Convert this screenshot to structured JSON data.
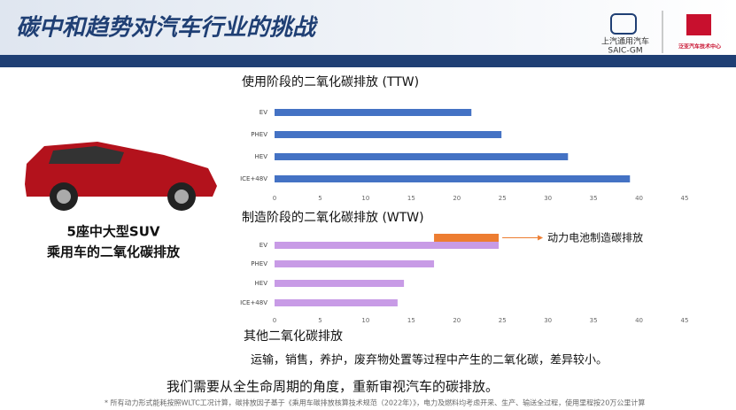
{
  "header": {
    "title": "碳中和趋势对汽车行业的挑战",
    "logo1_cn": "上汽通用汽车",
    "logo1_en": "SAIC-GM",
    "logo2": "泛亚汽车技术中心"
  },
  "left": {
    "line1": "5座中大型SUV",
    "line2": "乘用车的二氧化碳排放"
  },
  "chart_data": [
    {
      "type": "bar",
      "orientation": "horizontal",
      "title": "使用阶段的二氧化碳排放 (TTW)",
      "categories": [
        "EV",
        "PHEV",
        "HEV",
        "ICE+48V"
      ],
      "values": [
        21.6,
        24.9,
        32.2,
        39.0
      ],
      "color": "#4472c4",
      "xlim": [
        0,
        45
      ],
      "xticks": [
        0,
        5,
        10,
        15,
        20,
        25,
        30,
        35,
        40,
        45
      ]
    },
    {
      "type": "bar",
      "orientation": "horizontal",
      "title": "制造阶段的二氧化碳排放 (WTW)",
      "categories": [
        "EV",
        "PHEV",
        "HEV",
        "ICE+48V"
      ],
      "values": [
        24.6,
        17.5,
        14.2,
        13.5
      ],
      "color": "#c89be6",
      "xlim": [
        0,
        45
      ],
      "xticks": [
        0,
        5,
        10,
        15,
        20,
        25,
        30,
        35,
        40,
        45
      ],
      "highlight": {
        "label": "动力电池制造碳排放",
        "from": 17.5,
        "to": 24.6,
        "color": "#ed7d31"
      }
    }
  ],
  "other": {
    "title": "其他二氧化碳排放",
    "text": "运输，销售，养护，废弃物处置等过程中产生的二氧化碳，差异较小。"
  },
  "conclusion": "我们需要从全生命周期的角度，重新审视汽车的碳排放。",
  "footnote": "* 所有动力形式能耗按照WLTC工况计算，碳排放因子基于《乘用车碳排放核算技术规范（2022年）》，电力及燃料均考虑开采、生产、输送全过程，使用里程按20万公里计算"
}
